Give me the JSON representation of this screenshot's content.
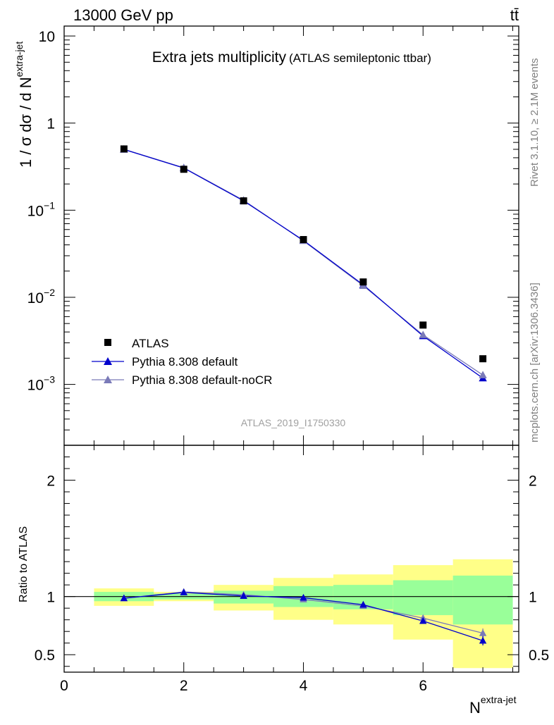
{
  "header": {
    "left": "13000 GeV pp",
    "right": "tt̄"
  },
  "side_labels": {
    "rivet": "Rivet 3.1.10, ≥ 2.1M events",
    "mcplots": "mcplots.cern.ch [arXiv:1306.3436]"
  },
  "colors": {
    "data": "#000000",
    "pythia_default": "#0000cc",
    "pythia_nocr": "#7a7ab8",
    "band_inner": "#99ff99",
    "band_outer": "#ffff88"
  },
  "chart_data": [
    {
      "type": "scatter",
      "title": "Extra jets multiplicity",
      "subtitle": "(ATLAS semileptonic ttbar)",
      "ylabel": "1 / σ dσ / d N",
      "ylabel_sup": "extra-jet",
      "watermark": "ATLAS_2019_I1750330",
      "yscale": "log",
      "ylim": [
        0.0002,
        13
      ],
      "xlim": [
        0,
        7.6
      ],
      "y_ticks": [
        {
          "value": 0.001,
          "base": "10",
          "exp": "−3"
        },
        {
          "value": 0.01,
          "base": "10",
          "exp": "−2"
        },
        {
          "value": 0.1,
          "base": "10",
          "exp": "−1"
        },
        {
          "value": 1,
          "base": "1",
          "exp": ""
        },
        {
          "value": 10,
          "base": "10",
          "exp": ""
        }
      ],
      "legend_position": "bottom-left",
      "series": [
        {
          "name": "ATLAS",
          "marker": "square",
          "x": [
            1,
            2,
            3,
            4,
            5,
            6,
            7
          ],
          "y": [
            0.505,
            0.295,
            0.128,
            0.046,
            0.015,
            0.0048,
            0.00197
          ]
        },
        {
          "name": "Pythia 8.308 default",
          "marker": "triangle",
          "x": [
            1,
            2,
            3,
            4,
            5,
            6,
            7
          ],
          "y": [
            0.498,
            0.305,
            0.128,
            0.045,
            0.0139,
            0.0036,
            0.00118
          ]
        },
        {
          "name": "Pythia 8.308 default-noCR",
          "marker": "triangle",
          "x": [
            1,
            2,
            3,
            4,
            5,
            6,
            7
          ],
          "y": [
            0.5,
            0.307,
            0.13,
            0.0445,
            0.0136,
            0.0037,
            0.00128
          ]
        }
      ]
    },
    {
      "type": "line",
      "ylabel": "Ratio to ATLAS",
      "xlabel": "N",
      "xlabel_sup": "extra-jet",
      "ylim": [
        0.35,
        2.3
      ],
      "xlim": [
        0,
        7.6
      ],
      "x_ticks": [
        {
          "value": 0,
          "label": "0"
        },
        {
          "value": 2,
          "label": "2"
        },
        {
          "value": 4,
          "label": "4"
        },
        {
          "value": 6,
          "label": "6"
        }
      ],
      "y_ticks": [
        {
          "value": 0.5,
          "label": "0.5"
        },
        {
          "value": 1,
          "label": "1"
        },
        {
          "value": 2,
          "label": "2"
        }
      ],
      "bands": [
        {
          "x0": 0.5,
          "x1": 1.5,
          "outer": [
            0.92,
            1.07
          ],
          "inner": [
            0.96,
            1.04
          ]
        },
        {
          "x0": 1.5,
          "x1": 2.5,
          "outer": [
            0.96,
            1.04
          ],
          "inner": [
            0.975,
            1.025
          ]
        },
        {
          "x0": 2.5,
          "x1": 3.5,
          "outer": [
            0.88,
            1.1
          ],
          "inner": [
            0.94,
            1.05
          ]
        },
        {
          "x0": 3.5,
          "x1": 4.5,
          "outer": [
            0.8,
            1.16
          ],
          "inner": [
            0.91,
            1.09
          ]
        },
        {
          "x0": 4.5,
          "x1": 5.5,
          "outer": [
            0.76,
            1.19
          ],
          "inner": [
            0.89,
            1.1
          ]
        },
        {
          "x0": 5.5,
          "x1": 6.5,
          "outer": [
            0.63,
            1.27
          ],
          "inner": [
            0.84,
            1.14
          ]
        },
        {
          "x0": 6.5,
          "x1": 7.5,
          "outer": [
            0.385,
            1.32
          ],
          "inner": [
            0.76,
            1.18
          ]
        }
      ],
      "series": [
        {
          "name": "Pythia 8.308 default",
          "x": [
            1,
            2,
            3,
            4,
            5,
            6,
            7
          ],
          "y": [
            0.985,
            1.035,
            1.005,
            0.99,
            0.93,
            0.79,
            0.62
          ],
          "err": [
            0.005,
            0.006,
            0.008,
            0.01,
            0.015,
            0.025,
            0.04
          ]
        },
        {
          "name": "Pythia 8.308 default-noCR",
          "x": [
            1,
            2,
            3,
            4,
            5,
            6,
            7
          ],
          "y": [
            0.985,
            1.04,
            1.015,
            0.975,
            0.92,
            0.815,
            0.685
          ],
          "err": [
            0.005,
            0.006,
            0.008,
            0.01,
            0.015,
            0.025,
            0.04
          ]
        }
      ]
    }
  ]
}
